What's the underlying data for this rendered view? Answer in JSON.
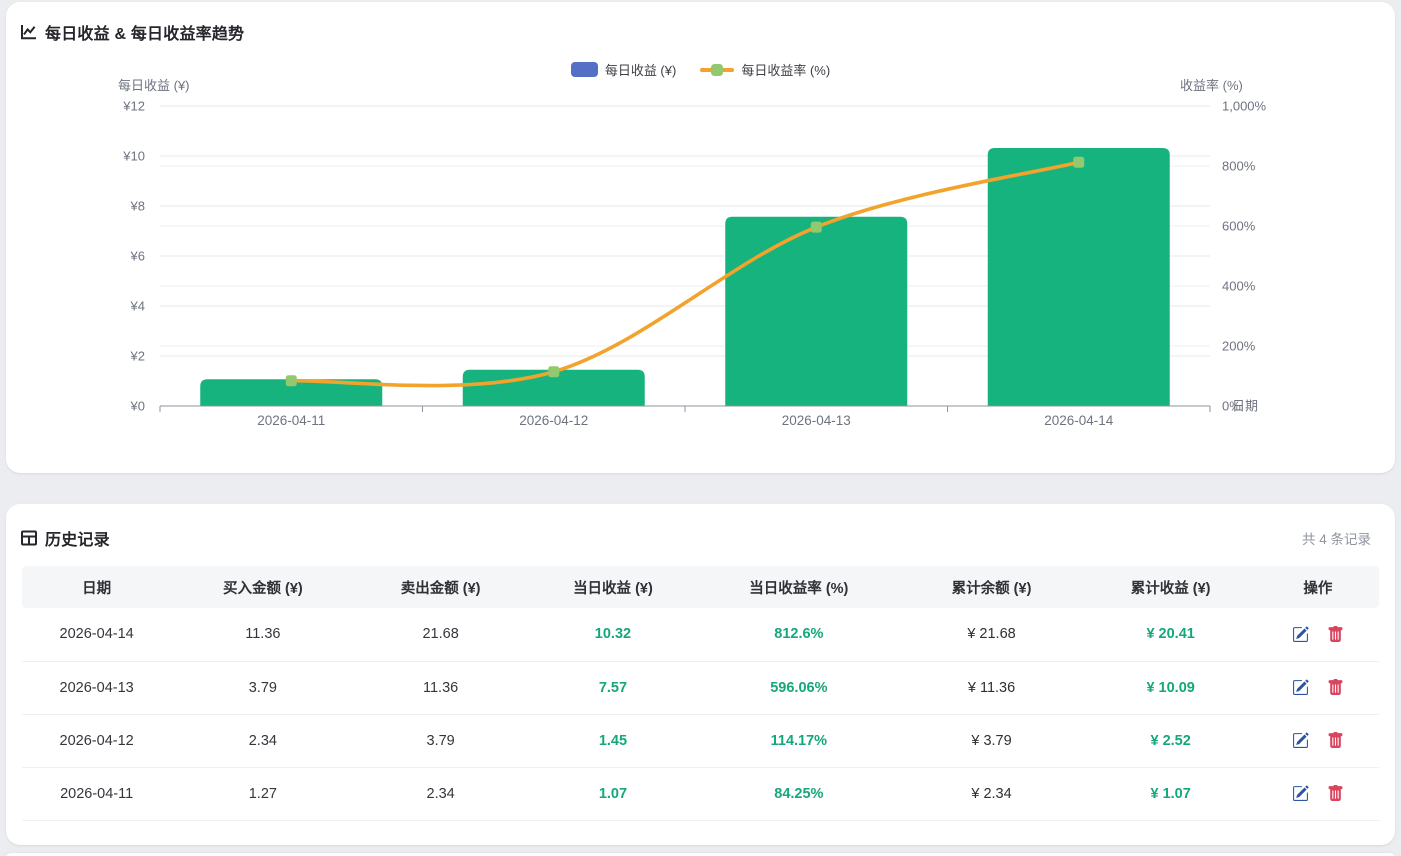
{
  "chart_card": {
    "title": "每日收益 & 每日收益率趋势",
    "legend_bar_label": "每日收益 (¥)",
    "legend_line_label": "每日收益率 (%)",
    "legend_bar_color": "#5470c6",
    "legend_line_color": "#F2A32C",
    "legend_marker_color": "#92C96E",
    "left_axis_name": "每日收益 (¥)",
    "right_axis_name": "收益率 (%)",
    "x_axis_name": "日期",
    "left_ticks": [
      "¥12",
      "¥10",
      "¥8",
      "¥6",
      "¥4",
      "¥2",
      "¥0"
    ],
    "right_ticks": [
      "1,000%",
      "800%",
      "600%",
      "400%",
      "200%",
      "0%"
    ]
  },
  "chart_data": {
    "type": "bar+line",
    "categories": [
      "2026-04-11",
      "2026-04-12",
      "2026-04-13",
      "2026-04-14"
    ],
    "series": [
      {
        "name": "每日收益 (¥)",
        "type": "bar",
        "axis": "left",
        "values": [
          1.07,
          1.45,
          7.57,
          10.32
        ],
        "color": "#17B37E"
      },
      {
        "name": "每日收益率 (%)",
        "type": "line",
        "axis": "right",
        "values": [
          84.25,
          114.17,
          596.06,
          812.6
        ],
        "color": "#F2A32C",
        "marker_color": "#92C96E"
      }
    ],
    "left_ylim": [
      0,
      12
    ],
    "right_ylim": [
      0,
      1000
    ],
    "xlabel": "日期",
    "left_ylabel": "每日收益 (¥)",
    "right_ylabel": "收益率 (%)",
    "grid": true,
    "legend_position": "top-center",
    "smooth": true
  },
  "table_card": {
    "title": "历史记录",
    "count_label": "共 4 条记录",
    "columns": [
      "日期",
      "买入金额 (¥)",
      "卖出金额 (¥)",
      "当日收益 (¥)",
      "当日收益率 (%)",
      "累计余额 (¥)",
      "累计收益 (¥)",
      "操作"
    ],
    "rows": [
      {
        "date": "2026-04-14",
        "buy": "11.36",
        "sell": "21.68",
        "profit": "10.32",
        "rate": "812.6%",
        "balance": "¥ 21.68",
        "total": "¥ 20.41"
      },
      {
        "date": "2026-04-13",
        "buy": "3.79",
        "sell": "11.36",
        "profit": "7.57",
        "rate": "596.06%",
        "balance": "¥ 11.36",
        "total": "¥ 10.09"
      },
      {
        "date": "2026-04-12",
        "buy": "2.34",
        "sell": "3.79",
        "profit": "1.45",
        "rate": "114.17%",
        "balance": "¥ 3.79",
        "total": "¥ 2.52"
      },
      {
        "date": "2026-04-11",
        "buy": "1.27",
        "sell": "2.34",
        "profit": "1.07",
        "rate": "84.25%",
        "balance": "¥ 2.34",
        "total": "¥ 1.07"
      }
    ]
  },
  "icons": {
    "chart_title_icon": "line-chart-icon",
    "table_title_icon": "table-grid-icon",
    "edit_icon": "edit-pencil-icon",
    "delete_icon": "trash-icon"
  },
  "colors": {
    "page_bg": "#ecedf1",
    "bar_green": "#17B37E",
    "line_orange": "#F2A32C",
    "marker_green": "#92C96E",
    "legend_blue": "#5470c6",
    "value_green": "#16a77c",
    "edit_blue": "#2B55A0",
    "delete_red": "#D9455F"
  }
}
